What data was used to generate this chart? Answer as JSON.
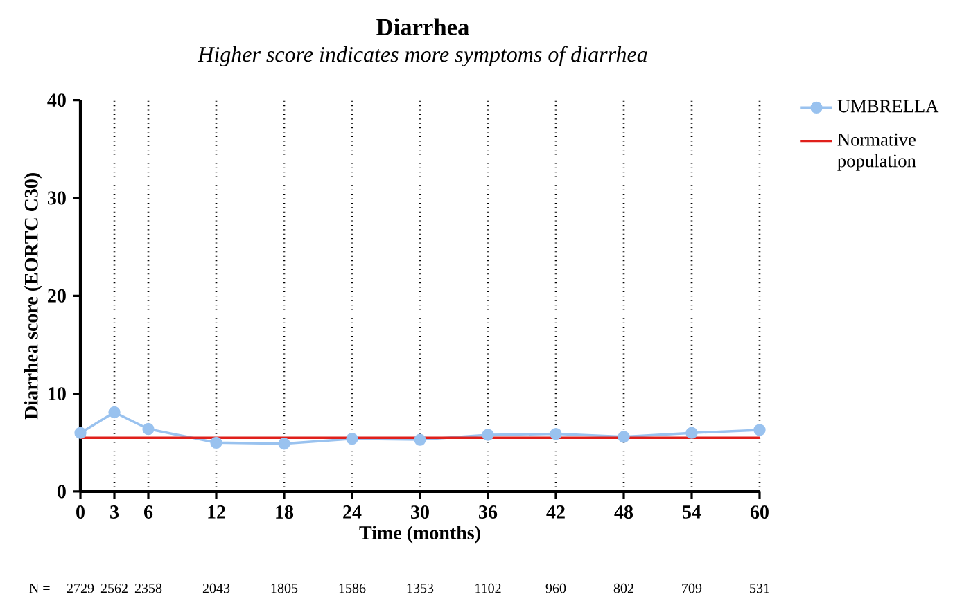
{
  "chart_data": {
    "type": "line",
    "title": "Diarrhea",
    "subtitle": "*Higher score indicates more symptoms of diarrhea*",
    "xlabel": "Time (months)",
    "ylabel": "Diarrhea score (EORTC C30)",
    "x": [
      0,
      3,
      6,
      12,
      18,
      24,
      30,
      36,
      42,
      48,
      54,
      60
    ],
    "series": [
      {
        "name": "UMBRELLA",
        "color": "#99c2ef",
        "values": [
          6.0,
          8.1,
          6.4,
          5.0,
          4.9,
          5.4,
          5.3,
          5.8,
          5.9,
          5.6,
          6.0,
          6.3
        ]
      }
    ],
    "ref_lines": [
      {
        "axis": "y",
        "value": 5.5,
        "label": "Normative population",
        "color": "#e0201b"
      }
    ],
    "xlim": [
      0,
      60
    ],
    "xticks": [
      0,
      3,
      6,
      12,
      18,
      24,
      30,
      36,
      42,
      48,
      54,
      60
    ],
    "ylim": [
      0,
      40
    ],
    "yticks": [
      0,
      10,
      20,
      30,
      40
    ],
    "grid": "x",
    "legend": "top right",
    "marker": "circle",
    "line_style": "solid",
    "annotations": [
      "N =",
      "2729",
      "2562",
      "2358",
      "2043",
      "1805",
      "1586",
      "1353",
      "1102",
      "960",
      "802",
      "709",
      "531"
    ]
  }
}
